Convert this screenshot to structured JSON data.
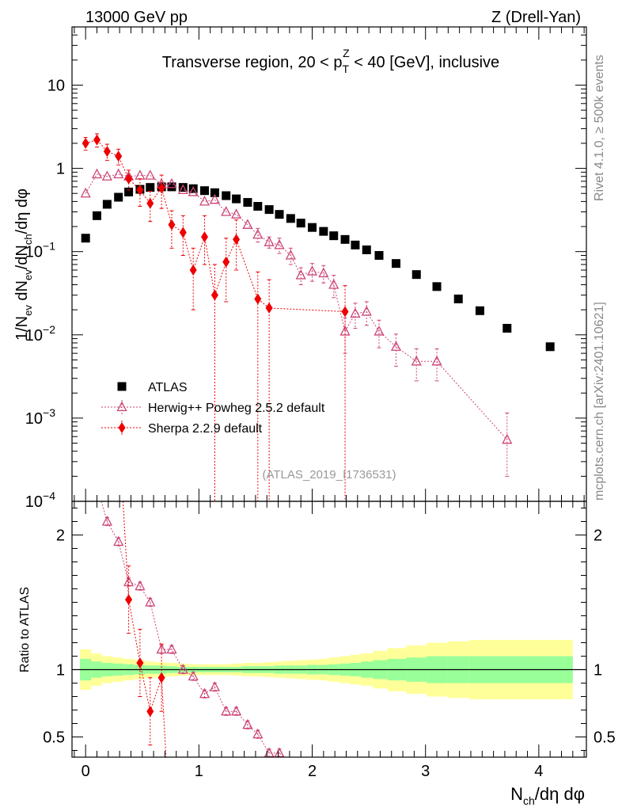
{
  "header": {
    "left": "13000 GeV pp",
    "right": "Z (Drell-Yan)"
  },
  "side_labels": {
    "rivet": "Rivet 4.1.0, ≥ 500k events",
    "mcplots": "mcplots.cern.ch [arXiv:2401.10621]"
  },
  "chart_data": [
    {
      "type": "scatter",
      "panel": "main",
      "title": "Transverse region, 20 < p_T^Z < 40 [GeV], inclusive",
      "title_parts": {
        "pre": "Transverse region, 20 < p",
        "sub": "T",
        "sup": "Z",
        "post": " < 40 [GeV], inclusive"
      },
      "watermark": "(ATLAS_2019_I1736531)",
      "ylabel": "1/N_ev dN_ev/dN_ch/dη dφ",
      "ylabel_parts": {
        "a": "1/N",
        "a_sub": "ev",
        "b": " dN",
        "b_sub": "ev",
        "c": "/dN",
        "c_sub": "ch",
        "d": "/dη dφ"
      },
      "yscale": "log",
      "ylim": [
        0.0001,
        50
      ],
      "xlim": [
        -0.12,
        4.42
      ],
      "y_ticks": [
        {
          "v": 0.0001,
          "base": "10",
          "exp": "−4"
        },
        {
          "v": 0.001,
          "base": "10",
          "exp": "−3"
        },
        {
          "v": 0.01,
          "base": "10",
          "exp": "−2"
        },
        {
          "v": 0.1,
          "base": "10",
          "exp": "−1"
        },
        {
          "v": 1,
          "base": "1",
          "exp": ""
        },
        {
          "v": 10,
          "base": "10",
          "exp": ""
        }
      ],
      "legend": [
        "ATLAS",
        "Herwig++ Powheg 2.5.2 default",
        "Sherpa 2.2.9 default"
      ],
      "legend_position": "lower-left",
      "series": [
        {
          "name": "ATLAS",
          "marker": "square",
          "color": "#000000",
          "x": [
            0.0,
            0.1,
            0.19,
            0.29,
            0.38,
            0.48,
            0.57,
            0.67,
            0.76,
            0.86,
            0.95,
            1.05,
            1.14,
            1.24,
            1.33,
            1.43,
            1.52,
            1.62,
            1.71,
            1.81,
            1.9,
            2.0,
            2.1,
            2.19,
            2.29,
            2.38,
            2.48,
            2.59,
            2.74,
            2.92,
            3.1,
            3.29,
            3.48,
            3.72,
            4.1
          ],
          "y": [
            0.145,
            0.27,
            0.37,
            0.45,
            0.52,
            0.56,
            0.59,
            0.6,
            0.6,
            0.59,
            0.57,
            0.54,
            0.51,
            0.47,
            0.43,
            0.39,
            0.35,
            0.32,
            0.28,
            0.25,
            0.22,
            0.195,
            0.175,
            0.155,
            0.14,
            0.12,
            0.105,
            0.09,
            0.072,
            0.053,
            0.038,
            0.027,
            0.0195,
            0.012,
            0.0072
          ]
        },
        {
          "name": "Herwig++ Powheg 2.5.2 default",
          "marker": "triangle-open",
          "color": "#cc4477",
          "line": "dotted",
          "x": [
            0.0,
            0.1,
            0.19,
            0.29,
            0.38,
            0.48,
            0.57,
            0.67,
            0.76,
            0.86,
            0.95,
            1.05,
            1.14,
            1.24,
            1.33,
            1.43,
            1.52,
            1.62,
            1.71,
            1.81,
            1.9,
            2.0,
            2.1,
            2.19,
            2.29,
            2.38,
            2.48,
            2.59,
            2.74,
            2.92,
            3.1,
            3.72
          ],
          "y": [
            0.5,
            0.85,
            0.8,
            0.85,
            0.8,
            0.82,
            0.82,
            0.65,
            0.65,
            0.55,
            0.52,
            0.4,
            0.42,
            0.3,
            0.28,
            0.21,
            0.16,
            0.13,
            0.12,
            0.09,
            0.052,
            0.058,
            0.055,
            0.04,
            0.011,
            0.018,
            0.019,
            0.011,
            0.0072,
            0.0048,
            0.0048,
            0.00055
          ],
          "err_lo": [
            0.0,
            0.0,
            0.0,
            0.0,
            0.0,
            0.0,
            0.0,
            0.0,
            0.0,
            0.0,
            0.0,
            0.0,
            0.0,
            0.0,
            0.0,
            0.0,
            0.03,
            0.02,
            0.025,
            0.02,
            0.012,
            0.014,
            0.013,
            0.012,
            0.005,
            0.006,
            0.006,
            0.004,
            0.003,
            0.002,
            0.002,
            0.00035
          ],
          "err_hi": [
            0.0,
            0.0,
            0.0,
            0.0,
            0.0,
            0.0,
            0.0,
            0.0,
            0.0,
            0.0,
            0.0,
            0.0,
            0.0,
            0.0,
            0.0,
            0.0,
            0.03,
            0.02,
            0.025,
            0.02,
            0.012,
            0.014,
            0.013,
            0.012,
            0.005,
            0.006,
            0.006,
            0.004,
            0.003,
            0.002,
            0.002,
            0.0006
          ]
        },
        {
          "name": "Sherpa 2.2.9 default",
          "marker": "diamond",
          "color": "#ee0000",
          "line": "dotted",
          "x": [
            0.0,
            0.1,
            0.19,
            0.29,
            0.38,
            0.48,
            0.57,
            0.67,
            0.76,
            0.86,
            0.95,
            1.05,
            1.14,
            1.24,
            1.33,
            1.52,
            1.62,
            2.29
          ],
          "y": [
            2.0,
            2.2,
            1.6,
            1.4,
            0.75,
            0.55,
            0.38,
            0.58,
            0.21,
            0.17,
            0.06,
            0.15,
            0.03,
            0.075,
            0.14,
            0.027,
            0.021,
            0.019
          ],
          "err_lo": [
            0.35,
            0.4,
            0.35,
            0.3,
            0.2,
            0.2,
            0.15,
            0.25,
            0.1,
            0.08,
            0.04,
            0.08,
            0.02999,
            0.05,
            0.08,
            0.02699,
            0.02099,
            0.01899
          ],
          "err_hi": [
            0.35,
            0.4,
            0.35,
            0.3,
            0.2,
            0.2,
            0.15,
            0.25,
            0.1,
            0.1,
            0.05,
            0.12,
            0.04,
            0.07,
            0.1,
            0.03,
            0.025,
            0.02
          ]
        }
      ]
    },
    {
      "type": "scatter",
      "panel": "ratio",
      "ylabel": "Ratio to ATLAS",
      "xlabel": "N_ch/dη dφ",
      "xlabel_parts": {
        "a": "N",
        "a_sub": "ch",
        "b": "/dη dφ"
      },
      "ylim": [
        0.35,
        2.25
      ],
      "xlim": [
        -0.12,
        4.42
      ],
      "x_ticks": [
        "0",
        "1",
        "2",
        "3",
        "4"
      ],
      "y_ticks": [
        "0.5",
        "1",
        "2"
      ],
      "reference_line": 1,
      "uncertainty_bands": {
        "colors": {
          "inner": "#99ff99",
          "outer": "#ffff99"
        },
        "edges": [
          -0.05,
          0.05,
          0.145,
          0.24,
          0.335,
          0.43,
          0.525,
          0.62,
          0.715,
          0.81,
          0.905,
          1.0,
          1.095,
          1.19,
          1.285,
          1.38,
          1.475,
          1.57,
          1.665,
          1.76,
          1.855,
          1.95,
          2.05,
          2.145,
          2.24,
          2.335,
          2.43,
          2.535,
          2.665,
          2.83,
          3.01,
          3.195,
          3.385,
          3.6,
          3.91,
          4.3
        ],
        "inner_half_width": [
          0.08,
          0.06,
          0.05,
          0.045,
          0.04,
          0.035,
          0.03,
          0.03,
          0.025,
          0.02,
          0.02,
          0.02,
          0.02,
          0.02,
          0.02,
          0.025,
          0.025,
          0.025,
          0.03,
          0.03,
          0.03,
          0.035,
          0.035,
          0.04,
          0.045,
          0.05,
          0.06,
          0.07,
          0.08,
          0.09,
          0.1,
          0.1,
          0.1,
          0.1,
          0.1
        ],
        "outer_half_width": [
          0.15,
          0.12,
          0.1,
          0.09,
          0.08,
          0.07,
          0.06,
          0.055,
          0.05,
          0.045,
          0.04,
          0.04,
          0.04,
          0.04,
          0.045,
          0.05,
          0.05,
          0.055,
          0.06,
          0.065,
          0.07,
          0.075,
          0.08,
          0.09,
          0.1,
          0.11,
          0.12,
          0.14,
          0.16,
          0.18,
          0.2,
          0.21,
          0.22,
          0.22,
          0.22
        ]
      },
      "series": [
        {
          "name": "Herwig++ Powheg 2.5.2 default",
          "x": [
            0.19,
            0.29,
            0.38,
            0.48,
            0.57,
            0.67,
            0.76,
            0.86,
            0.95,
            1.05,
            1.14,
            1.24,
            1.33,
            1.43,
            1.52,
            1.62,
            1.71
          ],
          "y": [
            2.1,
            1.95,
            1.65,
            1.62,
            1.5,
            1.15,
            1.15,
            1.0,
            0.95,
            0.82,
            0.87,
            0.69,
            0.69,
            0.59,
            0.52,
            0.38,
            0.38
          ]
        },
        {
          "name": "Sherpa 2.2.9 default",
          "x": [
            0.38,
            0.48,
            0.57,
            0.67
          ],
          "y": [
            1.52,
            1.05,
            0.69,
            0.94
          ]
        }
      ]
    }
  ]
}
